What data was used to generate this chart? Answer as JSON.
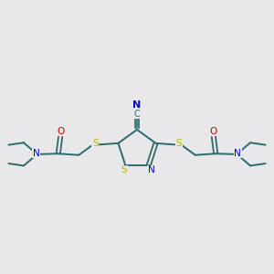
{
  "bg_color": "#e8e8eb",
  "bond_color": "#2d6b6b",
  "S_color": "#b8b800",
  "N_color": "#0000cc",
  "O_color": "#cc0000",
  "figsize": [
    3.0,
    3.0
  ],
  "dpi": 100,
  "xlim": [
    0,
    10
  ],
  "ylim": [
    2,
    8
  ]
}
